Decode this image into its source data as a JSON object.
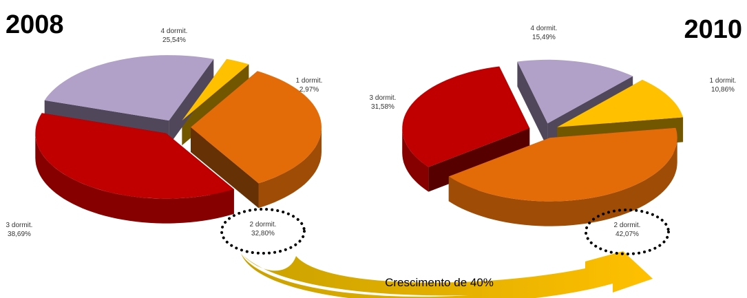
{
  "chart_data": [
    {
      "type": "pie",
      "title": "2008",
      "categories": [
        "1 dormit.",
        "2 dormit.",
        "3 dormit.",
        "4 dormit."
      ],
      "values": [
        2.97,
        32.8,
        38.69,
        25.54
      ],
      "value_labels": [
        "2,97%",
        "32,80%",
        "38,69%",
        "25,54%"
      ],
      "colors": [
        "#ffc000",
        "#e36c09",
        "#c00000",
        "#b1a0c7"
      ]
    },
    {
      "type": "pie",
      "title": "2010",
      "categories": [
        "1 dormit.",
        "2 dormit.",
        "3 dormit.",
        "4 dormit."
      ],
      "values": [
        10.86,
        42.07,
        31.58,
        15.49
      ],
      "value_labels": [
        "10,86%",
        "42,07%",
        "31,58%",
        "15,49%"
      ],
      "colors": [
        "#ffc000",
        "#e36c09",
        "#c00000",
        "#b1a0c7"
      ]
    }
  ],
  "annotation": "Crescimento de 40%"
}
